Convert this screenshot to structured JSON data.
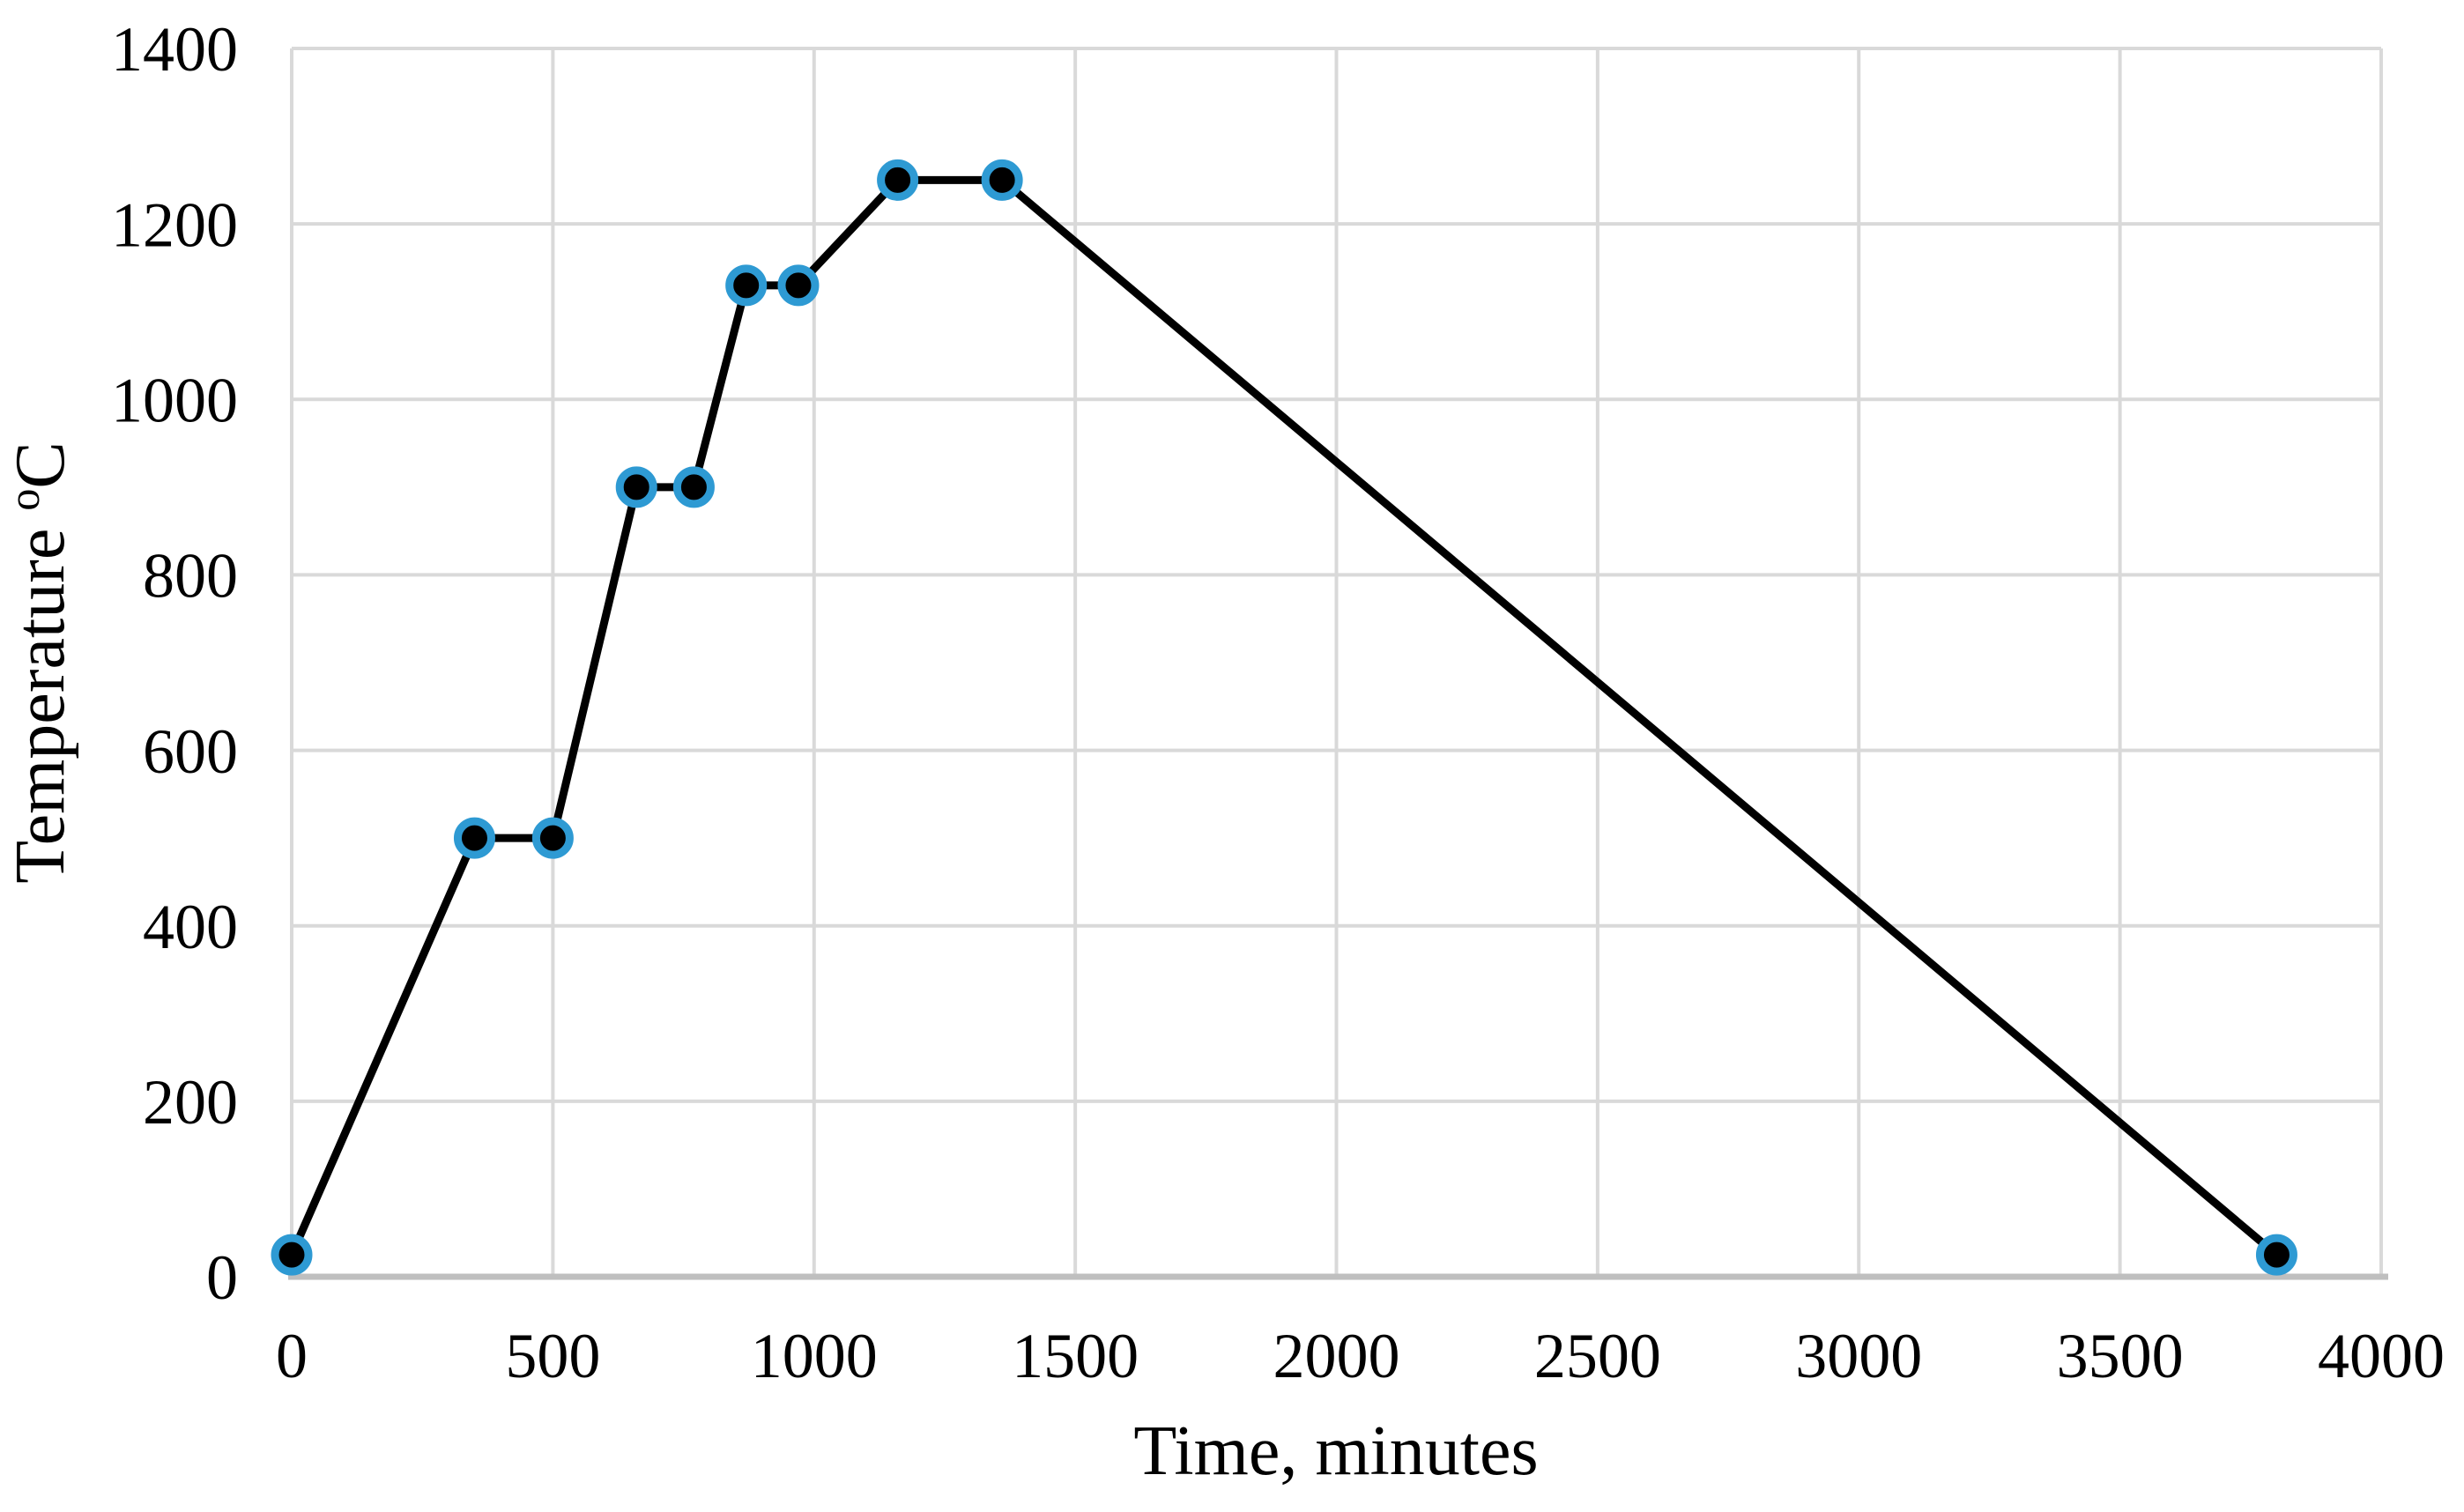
{
  "chart_data": {
    "type": "line",
    "title": "",
    "xlabel": "Time, minutes",
    "ylabel": "Temperature ºC",
    "ylabel_parts": {
      "text": "Temperature ",
      "superscript": "o",
      "unit": "C"
    },
    "x": [
      0,
      350,
      500,
      660,
      770,
      870,
      970,
      1160,
      1360,
      3800
    ],
    "y": [
      25,
      500,
      500,
      900,
      900,
      1130,
      1130,
      1250,
      1250,
      25
    ],
    "xlim": [
      0,
      4000
    ],
    "ylim": [
      0,
      1400
    ],
    "x_ticks": [
      0,
      500,
      1000,
      1500,
      2000,
      2500,
      3000,
      3500,
      4000
    ],
    "y_ticks": [
      0,
      200,
      400,
      600,
      800,
      1000,
      1200,
      1400
    ],
    "grid": "on",
    "legend": "none",
    "colors": {
      "line": "#000000",
      "marker_fill": "#000000",
      "marker_ring": "#2E9AD3",
      "gridline": "#D9D9D9",
      "axis_line": "#BFBFBF",
      "text": "#000000",
      "background": "#FFFFFF"
    }
  }
}
